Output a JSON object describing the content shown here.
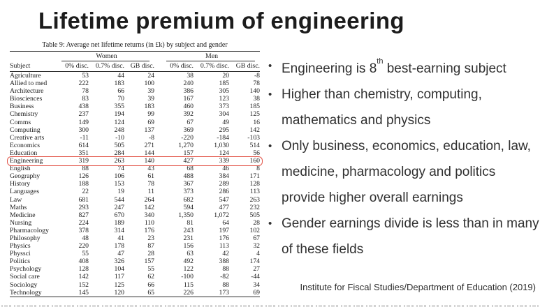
{
  "slide": {
    "title": "Lifetime premium of engineering",
    "bullet_marker": "•",
    "attribution": "Institute for Fiscal Studies/Department of Education (2019)"
  },
  "bullets": {
    "b1": {
      "pre": "Engineering is 8",
      "sup": "th",
      "post": " best-earning subject"
    },
    "b2": {
      "text": "Higher than chemistry, computing, mathematics and physics"
    },
    "b3": {
      "text": "Only business, economics, education, law, medicine, pharmacology and politics provide higher overall earnings"
    },
    "b4": {
      "text": "Gender earnings divide is less than in many of these fields"
    }
  },
  "table": {
    "caption": "Table 9: Average net lifetime returns (in £k) by subject and gender",
    "group_headers": {
      "women": "Women",
      "men": "Men"
    },
    "subject_header": "Subject",
    "col_headers": [
      "0% disc.",
      "0.7% disc.",
      "GB disc.",
      "0% disc.",
      "0.7% disc.",
      "GB disc."
    ],
    "highlighted_subject": "Engineering",
    "highlight_color": "#e25549",
    "rows": [
      {
        "subject": "Agriculture",
        "values": [
          "53",
          "44",
          "24",
          "38",
          "20",
          "-8"
        ]
      },
      {
        "subject": "Allied to med",
        "values": [
          "222",
          "183",
          "100",
          "240",
          "185",
          "78"
        ]
      },
      {
        "subject": "Architecture",
        "values": [
          "78",
          "66",
          "39",
          "386",
          "305",
          "140"
        ]
      },
      {
        "subject": "Biosciences",
        "values": [
          "83",
          "70",
          "39",
          "167",
          "123",
          "38"
        ]
      },
      {
        "subject": "Business",
        "values": [
          "438",
          "355",
          "183",
          "460",
          "373",
          "185"
        ]
      },
      {
        "subject": "Chemistry",
        "values": [
          "237",
          "194",
          "99",
          "392",
          "304",
          "125"
        ]
      },
      {
        "subject": "Comms",
        "values": [
          "149",
          "124",
          "69",
          "67",
          "49",
          "16"
        ]
      },
      {
        "subject": "Computing",
        "values": [
          "300",
          "248",
          "137",
          "369",
          "295",
          "142"
        ]
      },
      {
        "subject": "Creative arts",
        "values": [
          "-11",
          "-10",
          "-8",
          "-220",
          "-184",
          "-103"
        ]
      },
      {
        "subject": "Economics",
        "values": [
          "614",
          "505",
          "271",
          "1,270",
          "1,030",
          "514"
        ]
      },
      {
        "subject": "Education",
        "values": [
          "351",
          "284",
          "144",
          "157",
          "124",
          "56"
        ]
      },
      {
        "subject": "Engineering",
        "values": [
          "319",
          "263",
          "140",
          "427",
          "339",
          "160"
        ]
      },
      {
        "subject": "English",
        "values": [
          "88",
          "74",
          "43",
          "68",
          "46",
          "8"
        ]
      },
      {
        "subject": "Geography",
        "values": [
          "126",
          "106",
          "61",
          "488",
          "384",
          "171"
        ]
      },
      {
        "subject": "History",
        "values": [
          "188",
          "153",
          "78",
          "367",
          "289",
          "128"
        ]
      },
      {
        "subject": "Languages",
        "values": [
          "22",
          "19",
          "11",
          "373",
          "286",
          "113"
        ]
      },
      {
        "subject": "Law",
        "values": [
          "681",
          "544",
          "264",
          "682",
          "547",
          "263"
        ]
      },
      {
        "subject": "Maths",
        "values": [
          "293",
          "247",
          "142",
          "594",
          "477",
          "232"
        ]
      },
      {
        "subject": "Medicine",
        "values": [
          "827",
          "670",
          "340",
          "1,350",
          "1,072",
          "505"
        ]
      },
      {
        "subject": "Nursing",
        "values": [
          "224",
          "189",
          "110",
          "81",
          "64",
          "28"
        ]
      },
      {
        "subject": "Pharmacology",
        "values": [
          "378",
          "314",
          "176",
          "243",
          "197",
          "102"
        ]
      },
      {
        "subject": "Philosophy",
        "values": [
          "48",
          "41",
          "23",
          "231",
          "176",
          "67"
        ]
      },
      {
        "subject": "Physics",
        "values": [
          "220",
          "178",
          "87",
          "156",
          "113",
          "32"
        ]
      },
      {
        "subject": "Physsci",
        "values": [
          "55",
          "47",
          "28",
          "63",
          "42",
          "4"
        ]
      },
      {
        "subject": "Politics",
        "values": [
          "408",
          "326",
          "157",
          "492",
          "388",
          "174"
        ]
      },
      {
        "subject": "Psychology",
        "values": [
          "128",
          "104",
          "55",
          "122",
          "88",
          "27"
        ]
      },
      {
        "subject": "Social care",
        "values": [
          "142",
          "117",
          "62",
          "-100",
          "-82",
          "-44"
        ]
      },
      {
        "subject": "Sociology",
        "values": [
          "152",
          "125",
          "66",
          "115",
          "88",
          "34"
        ]
      },
      {
        "subject": "Technology",
        "values": [
          "145",
          "120",
          "65",
          "226",
          "173",
          "69"
        ]
      }
    ]
  }
}
